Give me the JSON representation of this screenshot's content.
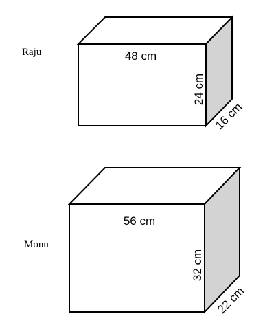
{
  "colors": {
    "background": "#ffffff",
    "face": "#ffffff",
    "side_face": "#d3d3d3",
    "edge": "#000000"
  },
  "boxes": [
    {
      "owner": "Raju",
      "length_label": "48 cm",
      "height_label": "24 cm",
      "depth_label": "16 cm"
    },
    {
      "owner": "Monu",
      "length_label": "56 cm",
      "height_label": "32 cm",
      "depth_label": "22 cm"
    }
  ]
}
